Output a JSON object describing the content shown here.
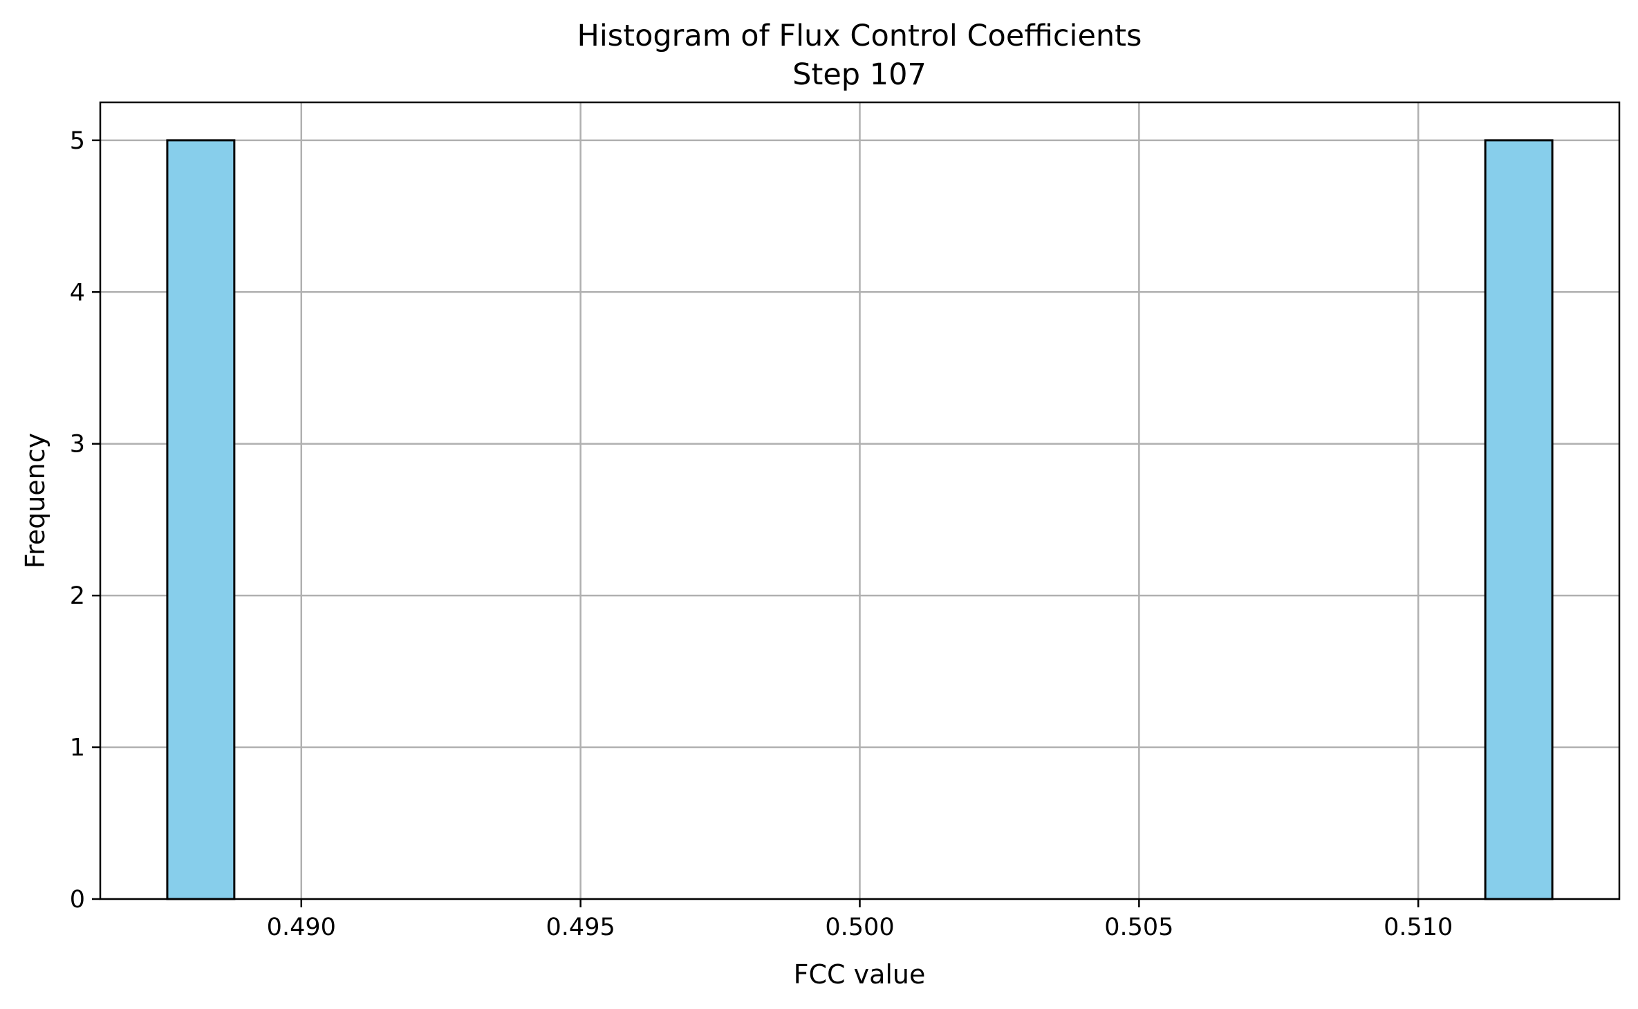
{
  "chart_data": {
    "type": "bar",
    "title": "Histogram of Flux Control Coefficients",
    "subtitle": "Step 107",
    "xlabel": "FCC value",
    "ylabel": "Frequency",
    "xlim": [
      0.4864,
      0.5136
    ],
    "ylim": [
      0,
      5.25
    ],
    "xticks": [
      0.49,
      0.495,
      0.5,
      0.505,
      0.51
    ],
    "xtick_labels": [
      "0.490",
      "0.495",
      "0.500",
      "0.505",
      "0.510"
    ],
    "yticks": [
      0,
      1,
      2,
      3,
      4,
      5
    ],
    "ytick_labels": [
      "0",
      "1",
      "2",
      "3",
      "4",
      "5"
    ],
    "grid": true,
    "bar_color": "#87CEEB",
    "edge_color": "#000000",
    "bins": [
      {
        "x0": 0.4876,
        "x1": 0.4888,
        "count": 5
      },
      {
        "x0": 0.5112,
        "x1": 0.5124,
        "count": 5
      }
    ]
  }
}
